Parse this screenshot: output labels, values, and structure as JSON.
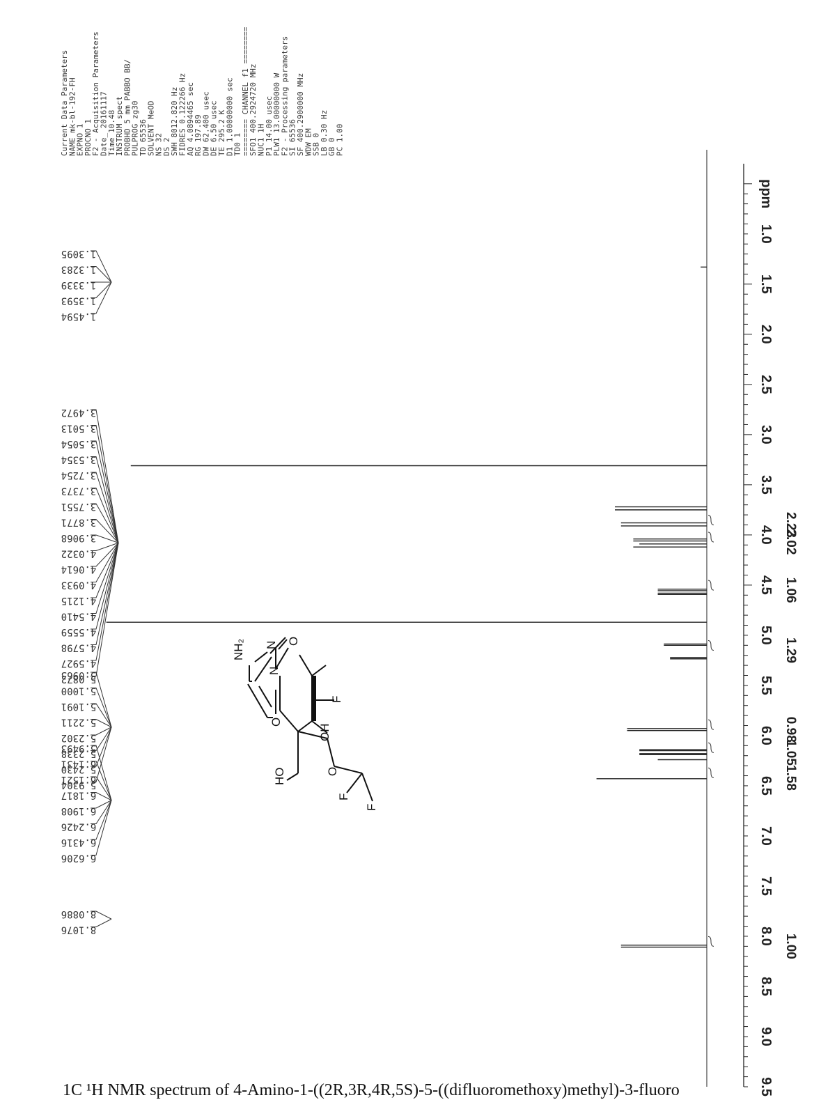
{
  "chart_data": {
    "type": "line",
    "x_unit_label": "ppm",
    "x_ticks": [
      "1.0",
      "1.5",
      "2.0",
      "2.5",
      "3.0",
      "3.5",
      "4.0",
      "4.5",
      "5.0",
      "5.5",
      "6.0",
      "6.5",
      "7.0",
      "7.5",
      "8.0",
      "8.5",
      "9.0",
      "9.5"
    ],
    "xlim": [
      0.3,
      9.5
    ],
    "peak_labels": [
      "1.3095",
      "1.3283",
      "1.3339",
      "1.3593",
      "1.4594",
      "3.4972",
      "3.5013",
      "3.5054",
      "3.5354",
      "3.7254",
      "3.7373",
      "3.7551",
      "3.8771",
      "3.9068",
      "4.0322",
      "4.0614",
      "4.0933",
      "4.1215",
      "4.5410",
      "4.5559",
      "4.5798",
      "4.5927",
      "5.0872",
      "5.0963",
      "5.1000",
      "5.1091",
      "5.2211",
      "5.2302",
      "5.2338",
      "5.2430",
      "5.9304",
      "5.9493",
      "6.1431",
      "6.1521",
      "6.1817",
      "6.1908",
      "6.2426",
      "6.4316",
      "6.6206",
      "8.0886",
      "8.1076"
    ],
    "peak_label_fan_centers": [
      1.4,
      3.72,
      5.16,
      6.25,
      8.1
    ],
    "integrals": [
      {
        "ppm": 3.9,
        "value": "2.23"
      },
      {
        "ppm": 4.07,
        "value": "2.02"
      },
      {
        "ppm": 4.55,
        "value": "1.06"
      },
      {
        "ppm": 5.15,
        "value": "1.29"
      },
      {
        "ppm": 5.94,
        "value": "0.98"
      },
      {
        "ppm": 6.17,
        "value": "1.05"
      },
      {
        "ppm": 6.42,
        "value": "1.58"
      },
      {
        "ppm": 8.1,
        "value": "1.00"
      }
    ],
    "peaks": [
      {
        "ppm": 1.33,
        "height": 0.01
      },
      {
        "ppm": 3.31,
        "height": 0.94
      },
      {
        "ppm": 3.72,
        "height": 0.15
      },
      {
        "ppm": 3.75,
        "height": 0.15
      },
      {
        "ppm": 3.88,
        "height": 0.14
      },
      {
        "ppm": 3.91,
        "height": 0.14
      },
      {
        "ppm": 4.04,
        "height": 0.12
      },
      {
        "ppm": 4.06,
        "height": 0.12
      },
      {
        "ppm": 4.09,
        "height": 0.11
      },
      {
        "ppm": 4.12,
        "height": 0.12
      },
      {
        "ppm": 4.54,
        "height": 0.08
      },
      {
        "ppm": 4.556,
        "height": 0.08
      },
      {
        "ppm": 4.58,
        "height": 0.08
      },
      {
        "ppm": 4.593,
        "height": 0.08
      },
      {
        "ppm": 4.87,
        "height": 0.98
      },
      {
        "ppm": 5.087,
        "height": 0.07
      },
      {
        "ppm": 5.1,
        "height": 0.07
      },
      {
        "ppm": 5.222,
        "height": 0.06
      },
      {
        "ppm": 5.235,
        "height": 0.06
      },
      {
        "ppm": 5.93,
        "height": 0.13
      },
      {
        "ppm": 5.95,
        "height": 0.13
      },
      {
        "ppm": 6.14,
        "height": 0.11
      },
      {
        "ppm": 6.15,
        "height": 0.11
      },
      {
        "ppm": 6.18,
        "height": 0.11
      },
      {
        "ppm": 6.19,
        "height": 0.11
      },
      {
        "ppm": 6.24,
        "height": 0.08
      },
      {
        "ppm": 6.43,
        "height": 0.18
      },
      {
        "ppm": 8.088,
        "height": 0.14
      },
      {
        "ppm": 8.108,
        "height": 0.14
      }
    ]
  },
  "parameters": {
    "current": [
      "Current Data Parameters",
      "NAME        mk-bl-192-FH",
      "EXPNO                  1",
      "PROCNO                 1"
    ],
    "acquisition": [
      "F2 - Acquisition Parameters",
      "Date_          20161117",
      "Time              10.48",
      "INSTRUM           spect",
      "PROBHD   5 mm PABBO BB/",
      "PULPROG            zg30",
      "TD                65536",
      "SOLVENT            MeOD",
      "NS                   32",
      "DS                    2",
      "SWH          8012.820 Hz",
      "FIDRES       0.122266 Hz",
      "AQ          4.0894465 sec",
      "RG               197.89",
      "DW               62.400 usec",
      "DE                 6.50 usec",
      "TE                295.2 K",
      "D1           1.00000000 sec",
      "TD0                   1"
    ],
    "channel": [
      "======== CHANNEL f1 ========",
      "SFO1       400.2924720 MHz",
      "NUC1                  1H",
      "P1                 14.00 usec",
      "PLW1         13.00000000 W"
    ],
    "processing": [
      "F2 - Processing parameters",
      "SI                65536",
      "SF          400.2900000 MHz",
      "WDW                    EM",
      "SSB                     0",
      "LB                 0.30 Hz",
      "GB                      0",
      "PC                   1.00"
    ]
  },
  "molecule": {
    "atoms": [
      "NH2",
      "N",
      "O",
      "N",
      "O",
      "F",
      "OH",
      "HO",
      "O",
      "F",
      "F"
    ]
  },
  "caption": "1C ¹H NMR spectrum of 4-Amino-1-((2R,3R,4R,5S)-5-((difluoromethoxy)methyl)-3-fluoro"
}
